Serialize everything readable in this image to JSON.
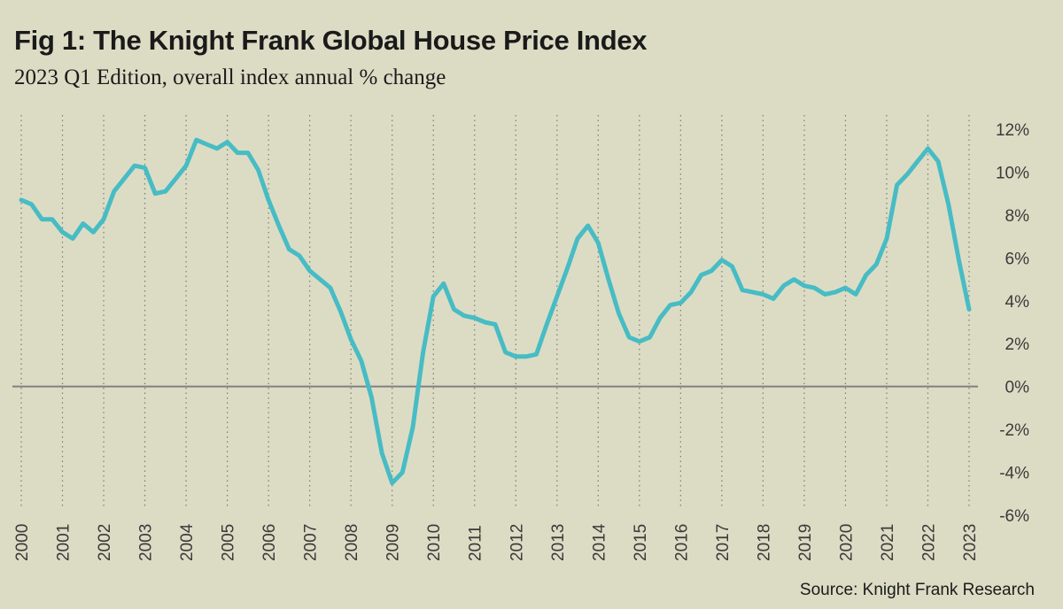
{
  "title": "Fig 1: The Knight Frank Global House Price Index",
  "subtitle": "2023 Q1 Edition, overall index annual % change",
  "source": "Source: Knight Frank Research",
  "colors": {
    "background": "#dcdcc5",
    "line": "#47bcc4",
    "grid": "#7a7a7a",
    "zero_line": "#808080"
  },
  "chart_data": {
    "type": "line",
    "title": "Fig 1: The Knight Frank Global House Price Index",
    "subtitle": "2023 Q1 Edition, overall index annual % change",
    "xlabel": "",
    "ylabel": "",
    "xlim": [
      2000,
      2023
    ],
    "ylim": [
      -6,
      12
    ],
    "y_ticks": [
      12,
      10,
      8,
      6,
      4,
      2,
      0,
      -2,
      -4,
      -6
    ],
    "y_tick_labels": [
      "12%",
      "10%",
      "8%",
      "6%",
      "4%",
      "2%",
      "0%",
      "-2%",
      "-4%",
      "-6%"
    ],
    "x_ticks": [
      2000,
      2001,
      2002,
      2003,
      2004,
      2005,
      2006,
      2007,
      2008,
      2009,
      2010,
      2011,
      2012,
      2013,
      2014,
      2015,
      2016,
      2017,
      2018,
      2019,
      2020,
      2021,
      2022,
      2023
    ],
    "x_tick_labels": [
      "2000",
      "2001",
      "2002",
      "2003",
      "2004",
      "2005",
      "2006",
      "2007",
      "2008",
      "2009",
      "2010",
      "2011",
      "2012",
      "2013",
      "2014",
      "2015",
      "2016",
      "2017",
      "2018",
      "2019",
      "2020",
      "2021",
      "2022",
      "2023"
    ],
    "grid": "vertical dotted",
    "y_axis_position": "right",
    "series": [
      {
        "x": [
          2000,
          2000.25,
          2000.5,
          2000.75,
          2001,
          2001.25,
          2001.5,
          2001.75,
          2002,
          2002.25,
          2002.5,
          2002.75,
          2003,
          2003.25,
          2003.5,
          2003.75,
          2004,
          2004.25,
          2004.5,
          2004.75,
          2005,
          2005.25,
          2005.5,
          2005.75,
          2006,
          2006.25,
          2006.5,
          2006.75,
          2007,
          2007.25,
          2007.5,
          2007.75,
          2008,
          2008.25,
          2008.5,
          2008.75,
          2009,
          2009.25,
          2009.5,
          2009.75,
          2010,
          2010.25,
          2010.5,
          2010.75,
          2011,
          2011.25,
          2011.5,
          2011.75,
          2012,
          2012.25,
          2012.5,
          2012.75,
          2013,
          2013.25,
          2013.5,
          2013.75,
          2014,
          2014.25,
          2014.5,
          2014.75,
          2015,
          2015.25,
          2015.5,
          2015.75,
          2016,
          2016.25,
          2016.5,
          2016.75,
          2017,
          2017.25,
          2017.5,
          2017.75,
          2018,
          2018.25,
          2018.5,
          2018.75,
          2019,
          2019.25,
          2019.5,
          2019.75,
          2020,
          2020.25,
          2020.5,
          2020.75,
          2021,
          2021.25,
          2021.5,
          2021.75,
          2022,
          2022.25,
          2022.5,
          2022.75,
          2023
        ],
        "values": [
          8.7,
          8.5,
          7.8,
          7.8,
          7.2,
          6.9,
          7.6,
          7.2,
          7.8,
          9.1,
          9.7,
          10.3,
          10.2,
          9.0,
          9.1,
          9.7,
          10.3,
          11.5,
          11.3,
          11.1,
          11.4,
          10.9,
          10.9,
          10.1,
          8.7,
          7.5,
          6.4,
          6.1,
          5.4,
          5.0,
          4.6,
          3.5,
          2.2,
          1.2,
          -0.5,
          -3.1,
          -4.5,
          -4.0,
          -1.9,
          1.6,
          4.2,
          4.8,
          3.6,
          3.3,
          3.2,
          3.0,
          2.9,
          1.6,
          1.4,
          1.4,
          1.5,
          2.9,
          4.2,
          5.5,
          6.9,
          7.5,
          6.7,
          5.0,
          3.4,
          2.3,
          2.1,
          2.3,
          3.2,
          3.8,
          3.9,
          4.4,
          5.2,
          5.4,
          5.9,
          5.6,
          4.5,
          4.4,
          4.3,
          4.1,
          4.7,
          5.0,
          4.7,
          4.6,
          4.3,
          4.4,
          4.6,
          4.3,
          5.2,
          5.7,
          6.9,
          9.4,
          9.9,
          10.5,
          11.1,
          10.5,
          8.5,
          5.9,
          3.6
        ]
      }
    ]
  }
}
